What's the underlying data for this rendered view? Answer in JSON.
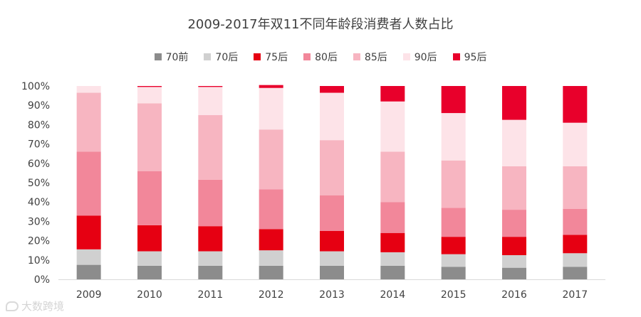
{
  "chart_data": {
    "type": "bar",
    "stacked": true,
    "title": "2009-2017年双11不同年龄段消费者人数占比",
    "categories": [
      "2009",
      "2010",
      "2011",
      "2012",
      "2013",
      "2014",
      "2015",
      "2016",
      "2017"
    ],
    "yticks": [
      "0%",
      "10%",
      "20%",
      "30%",
      "40%",
      "50%",
      "60%",
      "70%",
      "80%",
      "90%",
      "100%"
    ],
    "ylim": [
      0,
      100
    ],
    "xlabel": "",
    "ylabel": "",
    "legend_position": "top",
    "series": [
      {
        "name": "70前",
        "color": "#8c8c8c",
        "values": [
          7.5,
          7,
          7,
          7,
          7,
          7,
          6.5,
          6,
          6.5
        ]
      },
      {
        "name": "70后",
        "color": "#d0d0d0",
        "values": [
          8,
          7.5,
          7.5,
          8,
          7.5,
          7,
          6.5,
          6.5,
          7
        ]
      },
      {
        "name": "75后",
        "color": "#e60012",
        "values": [
          17.5,
          13.5,
          13,
          11,
          10.5,
          10,
          9,
          9.5,
          9.5
        ]
      },
      {
        "name": "80后",
        "color": "#f2879a",
        "values": [
          33,
          28,
          24,
          20.5,
          18.5,
          16,
          15,
          14,
          13.5
        ]
      },
      {
        "name": "85后",
        "color": "#f7b5c1",
        "values": [
          30.5,
          35,
          33.5,
          31,
          28.5,
          26,
          24.5,
          22.5,
          22
        ]
      },
      {
        "name": "90后",
        "color": "#fde3e8",
        "values": [
          3.5,
          8.5,
          14.5,
          21.5,
          24.5,
          26,
          24.5,
          24,
          22.5
        ]
      },
      {
        "name": "95后",
        "color": "#e8002b",
        "values": [
          0,
          0.5,
          0.5,
          1.5,
          3.5,
          8,
          14,
          17.5,
          19
        ]
      }
    ]
  },
  "watermark": {
    "text": "大数跨境"
  }
}
